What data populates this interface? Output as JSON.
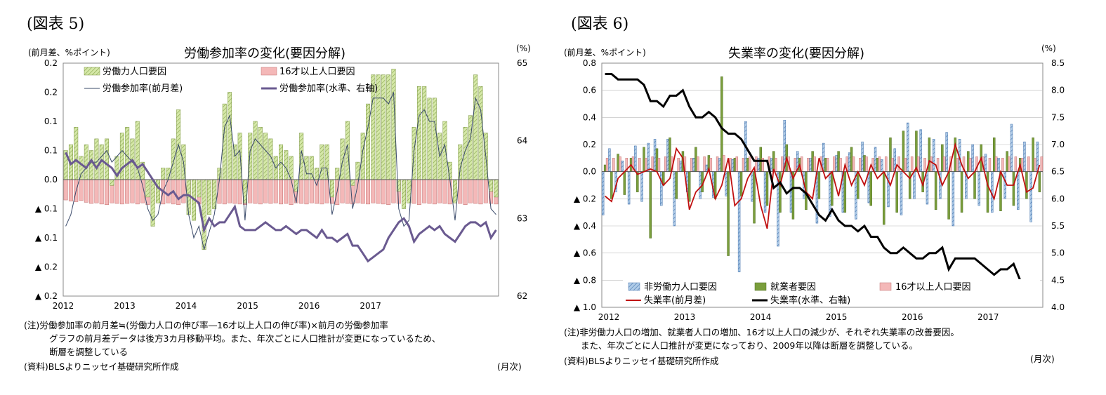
{
  "left": {
    "figure_label": "(図表 5)",
    "left_unit": "(前月差、%ポイント)",
    "right_unit": "(%)",
    "note_line1": "(注)労働参加率の前月差≒(労働力人口の伸び率―16才以上人口の伸び率)×前月の労働参加率",
    "note_line2": "グラフの前月差データは後方3カ月移動平均。また、年次ごとに人口推計が変更になっているため、",
    "note_line3": "断層を調整している",
    "source": "(資料)BLSよりニッセイ基礎研究所作成",
    "month_unit": "(月次)",
    "chart_data": {
      "type": "bar",
      "title": "労働参加率の変化(要因分解)",
      "x_labels": [
        "2012",
        "2013",
        "2014",
        "2015",
        "2016",
        "2017"
      ],
      "y_left_ticks": [
        "0.2",
        "0.2",
        "0.1",
        "0.1",
        "0.0",
        "▲ 0.1",
        "▲ 0.1",
        "▲ 0.2",
        "▲ 0.2"
      ],
      "y_right_ticks": [
        "65",
        "64",
        "63",
        "62"
      ],
      "ylim_left": [
        -0.2,
        0.2
      ],
      "ylim_right": [
        62,
        65
      ],
      "legend": [
        "労働力人口要因",
        "16才以上人口要因",
        "労働参加率(前月差)",
        "労働参加率(水準、右軸)"
      ],
      "legend_placement": "top-left",
      "colors": {
        "labor_force": "#d5e8a8",
        "population": "#f4b8b8",
        "diff_line": "#3a4a6a",
        "level_line": "#6a5a90"
      },
      "series": [
        {
          "name": "労働力人口要因",
          "kind": "bar",
          "values": [
            0.05,
            0.06,
            0.09,
            0.04,
            0.06,
            0.05,
            0.07,
            0.06,
            0.07,
            -0.01,
            0.04,
            0.08,
            0.09,
            0.07,
            0.1,
            0.03,
            -0.03,
            -0.08,
            -0.04,
            0.02,
            0.02,
            0.07,
            0.12,
            0.06,
            -0.06,
            -0.07,
            -0.03,
            -0.12,
            -0.06,
            -0.05,
            0.02,
            0.13,
            0.15,
            0.06,
            0.08,
            -0.04,
            0.08,
            0.1,
            0.09,
            0.08,
            0.07,
            0.04,
            0.06,
            0.05,
            0.04,
            -0.02,
            0.08,
            0.04,
            0.04,
            0.02,
            0.06,
            0.06,
            -0.03,
            0.02,
            0.07,
            0.1,
            -0.01,
            0.03,
            0.08,
            0.13,
            0.18,
            0.18,
            0.18,
            0.18,
            0.19,
            -0.02,
            -0.05,
            -0.04,
            0.09,
            0.16,
            0.16,
            0.14,
            0.14,
            0.08,
            0.1,
            0.03,
            -0.04,
            0.06,
            0.09,
            0.11,
            0.18,
            0.16,
            0.08,
            -0.02,
            -0.03
          ]
        },
        {
          "name": "16才以上人口要因",
          "kind": "bar",
          "values": [
            -0.035,
            -0.037,
            -0.038,
            -0.036,
            -0.039,
            -0.041,
            -0.04,
            -0.042,
            -0.043,
            -0.04,
            -0.041,
            -0.042,
            -0.041,
            -0.04,
            -0.042,
            -0.04,
            -0.043,
            -0.041,
            -0.04,
            -0.042,
            -0.04,
            -0.042,
            -0.043,
            -0.04,
            -0.041,
            -0.04,
            -0.042,
            -0.041,
            -0.043,
            -0.04,
            -0.041,
            -0.042,
            -0.04,
            -0.041,
            -0.042,
            -0.043,
            -0.04,
            -0.041,
            -0.042,
            -0.04,
            -0.041,
            -0.04,
            -0.042,
            -0.041,
            -0.043,
            -0.04,
            -0.041,
            -0.042,
            -0.04,
            -0.041,
            -0.042,
            -0.04,
            -0.041,
            -0.043,
            -0.04,
            -0.041,
            -0.042,
            -0.04,
            -0.041,
            -0.042,
            -0.04,
            -0.041,
            -0.042,
            -0.043,
            -0.04,
            -0.041,
            -0.042,
            -0.04,
            -0.041,
            -0.043,
            -0.04,
            -0.041,
            -0.042,
            -0.04,
            -0.041,
            -0.042,
            -0.04,
            -0.041,
            -0.043,
            -0.04,
            -0.041,
            -0.042,
            -0.04,
            -0.041,
            -0.042
          ]
        },
        {
          "name": "労働参加率(前月差)",
          "kind": "line",
          "values": [
            -0.08,
            -0.06,
            -0.02,
            0.01,
            0.02,
            0.03,
            0.03,
            0.04,
            0.05,
            0.03,
            0.04,
            0.05,
            0.04,
            0.03,
            0.02,
            -0.01,
            -0.05,
            -0.07,
            -0.06,
            -0.02,
            0.0,
            0.03,
            0.06,
            0.03,
            -0.06,
            -0.1,
            -0.08,
            -0.12,
            -0.09,
            -0.06,
            0.0,
            0.09,
            0.11,
            0.04,
            0.05,
            -0.07,
            0.05,
            0.07,
            0.06,
            0.05,
            0.04,
            0.02,
            0.03,
            0.02,
            0.0,
            -0.04,
            0.05,
            0.01,
            0.01,
            -0.01,
            0.02,
            0.02,
            -0.06,
            -0.02,
            0.03,
            0.06,
            -0.05,
            -0.01,
            0.05,
            0.09,
            0.14,
            0.14,
            0.14,
            0.13,
            0.15,
            -0.05,
            -0.08,
            -0.07,
            0.05,
            0.11,
            0.12,
            0.1,
            0.1,
            0.04,
            0.06,
            0.0,
            -0.07,
            0.02,
            0.05,
            0.07,
            0.14,
            0.12,
            0.04,
            -0.05,
            -0.06
          ]
        },
        {
          "name": "労働参加率(水準、右軸)",
          "kind": "line",
          "axis": "right",
          "values": [
            63.85,
            63.7,
            63.75,
            63.7,
            63.65,
            63.75,
            63.65,
            63.75,
            63.7,
            63.65,
            63.55,
            63.65,
            63.7,
            63.75,
            63.65,
            63.7,
            63.6,
            63.5,
            63.4,
            63.35,
            63.3,
            63.35,
            63.25,
            63.3,
            63.3,
            63.25,
            63.2,
            62.85,
            63.0,
            62.9,
            62.95,
            62.95,
            63.05,
            63.15,
            62.9,
            62.85,
            62.85,
            62.85,
            62.9,
            62.95,
            62.9,
            62.85,
            62.85,
            62.9,
            62.85,
            62.8,
            62.85,
            62.85,
            62.8,
            62.75,
            62.85,
            62.75,
            62.75,
            62.7,
            62.75,
            62.8,
            62.65,
            62.65,
            62.55,
            62.45,
            62.5,
            62.55,
            62.6,
            62.75,
            62.85,
            62.95,
            63.0,
            62.9,
            62.7,
            62.8,
            62.85,
            62.9,
            62.85,
            62.9,
            62.8,
            62.75,
            62.7,
            62.8,
            62.9,
            62.95,
            62.95,
            62.9,
            62.95,
            62.75,
            62.85
          ]
        }
      ]
    }
  },
  "right": {
    "figure_label": "(図表 6)",
    "left_unit": "(前月差、%ポイント)",
    "right_unit": "(%)",
    "note_line1": "(注)非労働力人口の増加、就業者人口の増加、16才以上人口の減少が、それぞれ失業率の改善要因。",
    "note_line2": "また、年次ごとに人口推計が変更になっており、2009年以降は断層を調整している。",
    "source": "(資料)BLSよりニッセイ基礎研究所作成",
    "month_unit": "(月次)",
    "chart_data": {
      "type": "bar",
      "title": "失業率の変化(要因分解)",
      "x_labels": [
        "2012",
        "2013",
        "2014",
        "2015",
        "2016",
        "2017"
      ],
      "y_left_ticks": [
        "0.8",
        "0.6",
        "0.4",
        "0.2",
        "0.0",
        "▲ 0.2",
        "▲ 0.4",
        "▲ 0.6",
        "▲ 0.8",
        "▲ 1.0"
      ],
      "y_right_ticks": [
        "8.5",
        "8.0",
        "7.5",
        "7.0",
        "6.5",
        "6.0",
        "5.5",
        "5.0",
        "4.5",
        "4.0"
      ],
      "ylim_left": [
        -1.0,
        0.8
      ],
      "ylim_right": [
        4.0,
        8.5
      ],
      "legend": [
        "非労働力人口要因",
        "就業者要因",
        "16才以上人口要因",
        "失業率(前月差)",
        "失業率(水準、右軸)"
      ],
      "legend_placement": "bottom",
      "colors": {
        "nonlabor": "#b0cce8",
        "employed": "#7a9e3c",
        "population": "#f4b8b8",
        "diff_line": "#c01010",
        "level_line": "#000000"
      },
      "series": [
        {
          "name": "非労働力人口要因",
          "kind": "bar",
          "values": [
            -0.32,
            0.17,
            -0.15,
            0.08,
            -0.24,
            0.19,
            -0.22,
            0.21,
            0.24,
            -0.25,
            0.24,
            -0.4,
            0.08,
            -0.15,
            0.1,
            -0.2,
            0.05,
            -0.19,
            0.1,
            -0.18,
            0.09,
            -0.74,
            0.37,
            -0.22,
            0.1,
            -0.3,
            0.1,
            -0.55,
            0.38,
            -0.3,
            0.15,
            -0.2,
            0.1,
            -0.38,
            0.21,
            -0.33,
            0.12,
            -0.3,
            0.14,
            -0.35,
            0.22,
            -0.23,
            0.18,
            0.09,
            -0.26,
            0.17,
            -0.32,
            0.36,
            -0.2,
            0.31,
            -0.24,
            0.24,
            -0.2,
            0.29,
            -0.4,
            0.24,
            -0.2,
            0.2,
            -0.25,
            0.13,
            -0.3,
            0.1,
            -0.2,
            0.35,
            -0.28,
            0.22,
            -0.37,
            0.22
          ]
        },
        {
          "name": "就業者要因",
          "kind": "bar",
          "values": [
            0.05,
            -0.2,
            0.13,
            -0.17,
            0.1,
            -0.15,
            0.18,
            -0.49,
            0.17,
            -0.1,
            0.25,
            -0.2,
            0.15,
            -0.22,
            0.18,
            -0.15,
            0.12,
            -0.2,
            0.7,
            -0.62,
            0.1,
            -0.18,
            0.1,
            -0.38,
            0.18,
            -0.25,
            0.15,
            -0.3,
            0.2,
            -0.35,
            0.1,
            -0.28,
            0.15,
            -0.2,
            0.1,
            -0.25,
            0.15,
            -0.3,
            0.18,
            -0.2,
            0.12,
            -0.25,
            0.1,
            -0.39,
            0.25,
            -0.3,
            0.3,
            -0.2,
            0.3,
            -0.15,
            0.25,
            -0.28,
            0.2,
            -0.35,
            0.25,
            -0.3,
            0.15,
            -0.2,
            0.2,
            -0.3,
            0.25,
            -0.29,
            0.15,
            -0.25,
            0.1,
            -0.2,
            0.25,
            -0.15
          ]
        },
        {
          "name": "16才以上人口要因",
          "kind": "bar",
          "values": [
            0.1,
            0.1,
            0.11,
            0.1,
            0.11,
            0.1,
            0.1,
            0.11,
            0.1,
            0.11,
            0.11,
            0.1,
            0.11,
            0.1,
            0.11,
            0.11,
            0.1,
            0.11,
            0.12,
            0.1,
            0.11,
            0.1,
            0.11,
            0.11,
            0.1,
            0.11,
            0.1,
            0.11,
            0.11,
            0.1,
            0.11,
            0.1,
            0.11,
            0.11,
            0.1,
            0.11,
            0.1,
            0.11,
            0.11,
            0.1,
            0.11,
            0.1,
            0.11,
            0.11,
            0.1,
            0.11,
            0.1,
            0.11,
            0.11,
            0.1,
            0.11,
            0.1,
            0.11,
            0.11,
            0.1,
            0.11,
            0.1,
            0.11,
            0.11,
            0.1,
            0.11,
            0.1,
            0.11,
            0.11,
            0.1,
            0.11,
            0.1,
            0.11
          ]
        },
        {
          "name": "失業率(前月差)",
          "kind": "line",
          "values": [
            -0.18,
            -0.22,
            -0.05,
            0.0,
            0.05,
            -0.02,
            0.0,
            0.02,
            0.0,
            -0.1,
            -0.05,
            0.17,
            0.1,
            -0.28,
            -0.15,
            -0.1,
            0.02,
            -0.2,
            -0.1,
            0.1,
            -0.25,
            -0.2,
            -0.05,
            0.03,
            -0.25,
            -0.42,
            0.02,
            -0.1,
            0.1,
            -0.05,
            0.05,
            -0.15,
            -0.2,
            0.1,
            -0.05,
            0.0,
            -0.18,
            0.05,
            -0.1,
            0.0,
            -0.1,
            0.05,
            -0.05,
            0.0,
            -0.1,
            0.05,
            0.0,
            -0.05,
            0.03,
            -0.1,
            0.08,
            0.05,
            -0.1,
            0.0,
            0.2,
            0.05,
            -0.05,
            0.0,
            0.1,
            -0.1,
            -0.2,
            0.0,
            -0.1,
            -0.1,
            0.05,
            -0.15,
            -0.12,
            0.05
          ]
        },
        {
          "name": "失業率(水準、右軸)",
          "kind": "line",
          "axis": "right",
          "values": [
            8.3,
            8.3,
            8.2,
            8.2,
            8.2,
            8.2,
            8.1,
            7.8,
            7.8,
            7.7,
            7.9,
            7.9,
            8.0,
            7.7,
            7.5,
            7.5,
            7.6,
            7.5,
            7.3,
            7.2,
            7.2,
            7.1,
            6.9,
            6.7,
            6.7,
            6.7,
            6.2,
            6.3,
            6.1,
            6.2,
            6.2,
            6.1,
            5.9,
            5.7,
            5.6,
            5.8,
            5.6,
            5.5,
            5.5,
            5.4,
            5.5,
            5.3,
            5.3,
            5.1,
            5.0,
            5.0,
            5.1,
            5.0,
            4.9,
            4.9,
            5.0,
            5.0,
            5.1,
            4.7,
            4.9,
            4.9,
            4.9,
            4.9,
            4.8,
            4.7,
            4.6,
            4.7,
            4.7,
            4.8,
            4.5,
            4.4,
            4.3,
            4.3
          ]
        }
      ]
    }
  }
}
